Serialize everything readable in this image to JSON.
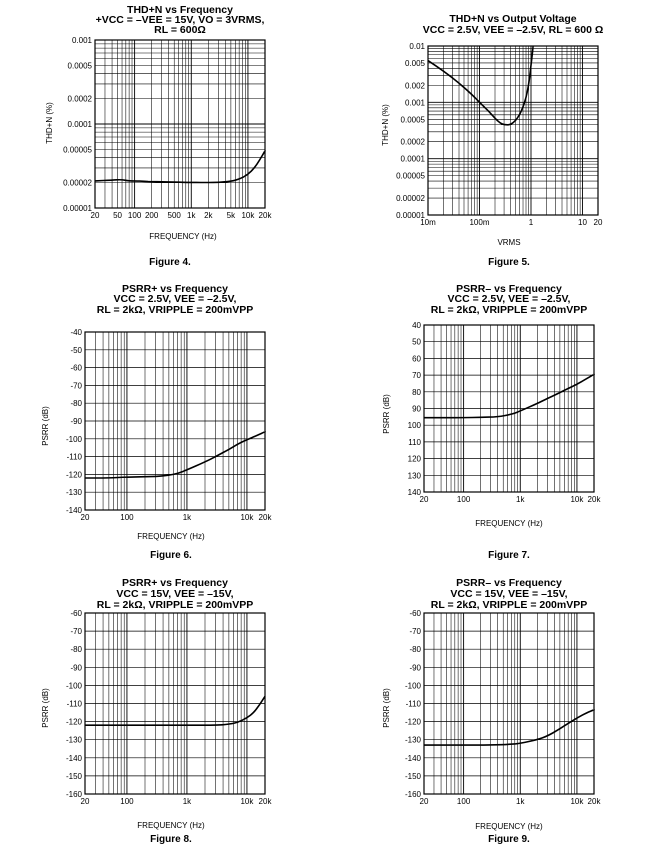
{
  "colors": {
    "background": "#ffffff",
    "ink": "#000000"
  },
  "chart_data": [
    {
      "type": "line",
      "title": [
        "THD+N vs Frequency",
        "+VCC = –VEE = 15V, VO = 3VRMS,",
        "RL = 600Ω"
      ],
      "figure": "Figure 4.",
      "xlabel": "FREQUENCY (Hz)",
      "ylabel": "THD+N (%)",
      "xscale": "log",
      "yscale": "log",
      "xlim": [
        20,
        20000
      ],
      "ylim": [
        1e-05,
        0.001
      ],
      "grid": true,
      "xticks": [
        {
          "v": 20,
          "t": "20"
        },
        {
          "v": 50,
          "t": "50"
        },
        {
          "v": 100,
          "t": "100"
        },
        {
          "v": 200,
          "t": "200"
        },
        {
          "v": 500,
          "t": "500"
        },
        {
          "v": 1000,
          "t": "1k"
        },
        {
          "v": 2000,
          "t": "2k"
        },
        {
          "v": 5000,
          "t": "5k"
        },
        {
          "v": 10000,
          "t": "10k"
        },
        {
          "v": 20000,
          "t": "20k"
        }
      ],
      "yticks": [
        {
          "v": 0.001,
          "t": "0.001"
        },
        {
          "v": 0.0005,
          "t": "0.0005"
        },
        {
          "v": 0.0002,
          "t": "0.0002"
        },
        {
          "v": 0.0001,
          "t": "0.0001"
        },
        {
          "v": 5e-05,
          "t": "0.00005"
        },
        {
          "v": 2e-05,
          "t": "0.00002"
        },
        {
          "v": 1e-05,
          "t": "0.00001"
        }
      ],
      "series": [
        {
          "x": [
            20,
            40,
            60,
            80,
            100,
            150,
            200,
            300,
            500,
            800,
            1000,
            1500,
            2000,
            3000,
            5000,
            7000,
            10000,
            13000,
            16000,
            20000
          ],
          "y": [
            2.1e-05,
            2.15e-05,
            2.18e-05,
            2.1e-05,
            2.1e-05,
            2.08e-05,
            2.06e-05,
            2.05e-05,
            2.04e-05,
            2.02e-05,
            2.02e-05,
            2.01e-05,
            2.01e-05,
            2.02e-05,
            2.08e-05,
            2.2e-05,
            2.5e-05,
            3e-05,
            3.7e-05,
            4.8e-05
          ]
        }
      ]
    },
    {
      "type": "line",
      "title": [
        "THD+N vs Output Voltage",
        "VCC = 2.5V, VEE = –2.5V, RL = 600 Ω"
      ],
      "figure": "Figure 5.",
      "xlabel": "VRMS",
      "ylabel": "THD+N (%)",
      "xscale": "log",
      "yscale": "log",
      "xlim": [
        0.01,
        20
      ],
      "ylim": [
        1e-05,
        0.01
      ],
      "grid": true,
      "xticks": [
        {
          "v": 0.01,
          "t": "10m"
        },
        {
          "v": 0.1,
          "t": "100m"
        },
        {
          "v": 1,
          "t": "1"
        },
        {
          "v": 10,
          "t": "10"
        },
        {
          "v": 20,
          "t": "20"
        }
      ],
      "yticks": [
        {
          "v": 0.01,
          "t": "0.01"
        },
        {
          "v": 0.005,
          "t": "0.005"
        },
        {
          "v": 0.002,
          "t": "0.002"
        },
        {
          "v": 0.001,
          "t": "0.001"
        },
        {
          "v": 0.0005,
          "t": "0.0005"
        },
        {
          "v": 0.0002,
          "t": "0.0002"
        },
        {
          "v": 0.0001,
          "t": "0.0001"
        },
        {
          "v": 5e-05,
          "t": "0.00005"
        },
        {
          "v": 2e-05,
          "t": "0.00002"
        },
        {
          "v": 1e-05,
          "t": "0.00001"
        }
      ],
      "series": [
        {
          "x": [
            0.01,
            0.02,
            0.04,
            0.07,
            0.1,
            0.15,
            0.2,
            0.25,
            0.3,
            0.4,
            0.5,
            0.6,
            0.7,
            0.8,
            0.9,
            1.0,
            1.1
          ],
          "y": [
            0.0055,
            0.0036,
            0.0022,
            0.0014,
            0.001,
            0.0007,
            0.00052,
            0.00043,
            0.0004,
            0.0004,
            0.00047,
            0.0006,
            0.00082,
            0.0012,
            0.002,
            0.0045,
            0.01
          ]
        }
      ]
    },
    {
      "type": "line",
      "title": [
        "PSRR+ vs Frequency",
        "VCC = 2.5V, VEE = –2.5V,",
        "RL = 2kΩ, VRIPPLE = 200mVPP"
      ],
      "figure": "Figure 6.",
      "xlabel": "FREQUENCY (Hz)",
      "ylabel": "PSRR (dB)",
      "xscale": "log",
      "yscale": "linear",
      "xlim": [
        20,
        20000
      ],
      "ylim": [
        -140,
        -40
      ],
      "grid": true,
      "xticks": [
        {
          "v": 20,
          "t": "20"
        },
        {
          "v": 100,
          "t": "100"
        },
        {
          "v": 1000,
          "t": "1k"
        },
        {
          "v": 10000,
          "t": "10k"
        },
        {
          "v": 20000,
          "t": "20k"
        }
      ],
      "yticks": [
        {
          "v": -40,
          "t": "-40"
        },
        {
          "v": -50,
          "t": "-50"
        },
        {
          "v": -60,
          "t": "-60"
        },
        {
          "v": -70,
          "t": "-70"
        },
        {
          "v": -80,
          "t": "-80"
        },
        {
          "v": -90,
          "t": "-90"
        },
        {
          "v": -100,
          "t": "-100"
        },
        {
          "v": -110,
          "t": "-110"
        },
        {
          "v": -120,
          "t": "-120"
        },
        {
          "v": -130,
          "t": "-130"
        },
        {
          "v": -140,
          "t": "-140"
        }
      ],
      "series": [
        {
          "x": [
            20,
            50,
            100,
            200,
            300,
            500,
            700,
            1000,
            2000,
            3000,
            5000,
            7000,
            10000,
            15000,
            20000
          ],
          "y": [
            -122,
            -122,
            -121.5,
            -121.3,
            -121.2,
            -120.5,
            -119.5,
            -117.5,
            -113,
            -110,
            -106,
            -103,
            -100.5,
            -98,
            -96
          ]
        }
      ]
    },
    {
      "type": "line",
      "title": [
        "PSRR– vs Frequency",
        "VCC = 2.5V, VEE = –2.5V,",
        "RL = 2kΩ, VRIPPLE = 200mVPP"
      ],
      "figure": "Figure 7.",
      "xlabel": "FREQUENCY (Hz)",
      "ylabel": "PSRR (dB)",
      "xscale": "log",
      "yscale": "linear",
      "xlim": [
        20,
        20000
      ],
      "ylim": [
        40,
        140
      ],
      "yinverted": true,
      "grid": true,
      "xticks": [
        {
          "v": 20,
          "t": "20"
        },
        {
          "v": 100,
          "t": "100"
        },
        {
          "v": 1000,
          "t": "1k"
        },
        {
          "v": 10000,
          "t": "10k"
        },
        {
          "v": 20000,
          "t": "20k"
        }
      ],
      "yticks": [
        {
          "v": 40,
          "t": "40"
        },
        {
          "v": 50,
          "t": "50"
        },
        {
          "v": 60,
          "t": "60"
        },
        {
          "v": 70,
          "t": "70"
        },
        {
          "v": 80,
          "t": "80"
        },
        {
          "v": 90,
          "t": "90"
        },
        {
          "v": 100,
          "t": "100"
        },
        {
          "v": 110,
          "t": "110"
        },
        {
          "v": 120,
          "t": "120"
        },
        {
          "v": 130,
          "t": "130"
        },
        {
          "v": 140,
          "t": "140"
        }
      ],
      "series": [
        {
          "x": [
            20,
            50,
            100,
            200,
            400,
            700,
            1000,
            2000,
            3000,
            5000,
            7000,
            10000,
            15000,
            20000
          ],
          "y": [
            95.5,
            95.5,
            95.5,
            95.3,
            95,
            93.5,
            91.5,
            87,
            84,
            80.5,
            78,
            75.5,
            72,
            69.5
          ]
        }
      ]
    },
    {
      "type": "line",
      "title": [
        "PSRR+ vs Frequency",
        "VCC = 15V, VEE = –15V,",
        "RL = 2kΩ, VRIPPLE = 200mVPP"
      ],
      "figure": "Figure 8.",
      "xlabel": "FREQUENCY (Hz)",
      "ylabel": "PSRR (dB)",
      "xscale": "log",
      "yscale": "linear",
      "xlim": [
        20,
        20000
      ],
      "ylim": [
        -160,
        -60
      ],
      "grid": true,
      "xticks": [
        {
          "v": 20,
          "t": "20"
        },
        {
          "v": 100,
          "t": "100"
        },
        {
          "v": 1000,
          "t": "1k"
        },
        {
          "v": 10000,
          "t": "10k"
        },
        {
          "v": 20000,
          "t": "20k"
        }
      ],
      "yticks": [
        {
          "v": -60,
          "t": "-60"
        },
        {
          "v": -70,
          "t": "-70"
        },
        {
          "v": -80,
          "t": "-80"
        },
        {
          "v": -90,
          "t": "-90"
        },
        {
          "v": -100,
          "t": "-100"
        },
        {
          "v": -110,
          "t": "-110"
        },
        {
          "v": -120,
          "t": "-120"
        },
        {
          "v": -130,
          "t": "-130"
        },
        {
          "v": -140,
          "t": "-140"
        },
        {
          "v": -150,
          "t": "-150"
        },
        {
          "v": -160,
          "t": "-160"
        }
      ],
      "series": [
        {
          "x": [
            20,
            100,
            500,
            1000,
            2000,
            3000,
            5000,
            7000,
            10000,
            13000,
            16000,
            20000
          ],
          "y": [
            -122,
            -122,
            -122,
            -122,
            -122,
            -122,
            -121.5,
            -120.5,
            -118,
            -115,
            -111,
            -106
          ]
        }
      ]
    },
    {
      "type": "line",
      "title": [
        "PSRR– vs Frequency",
        "VCC = 15V, VEE = –15V,",
        "RL = 2kΩ, VRIPPLE = 200mVPP"
      ],
      "figure": "Figure 9.",
      "xlabel": "FREQUENCY (Hz)",
      "ylabel": "PSRR (dB)",
      "xscale": "log",
      "yscale": "linear",
      "xlim": [
        20,
        20000
      ],
      "ylim": [
        -160,
        -60
      ],
      "grid": true,
      "xticks": [
        {
          "v": 20,
          "t": "20"
        },
        {
          "v": 100,
          "t": "100"
        },
        {
          "v": 1000,
          "t": "1k"
        },
        {
          "v": 10000,
          "t": "10k"
        },
        {
          "v": 20000,
          "t": "20k"
        }
      ],
      "yticks": [
        {
          "v": -60,
          "t": "-60"
        },
        {
          "v": -70,
          "t": "-70"
        },
        {
          "v": -80,
          "t": "-80"
        },
        {
          "v": -90,
          "t": "-90"
        },
        {
          "v": -100,
          "t": "-100"
        },
        {
          "v": -110,
          "t": "-110"
        },
        {
          "v": -120,
          "t": "-120"
        },
        {
          "v": -130,
          "t": "-130"
        },
        {
          "v": -140,
          "t": "-140"
        },
        {
          "v": -150,
          "t": "-150"
        },
        {
          "v": -160,
          "t": "-160"
        }
      ],
      "series": [
        {
          "x": [
            20,
            100,
            300,
            700,
            1000,
            2000,
            3000,
            5000,
            7000,
            10000,
            15000,
            20000
          ],
          "y": [
            -133,
            -133,
            -133,
            -132.5,
            -132,
            -130,
            -128,
            -124,
            -121,
            -118,
            -115,
            -113.5
          ]
        }
      ]
    }
  ]
}
